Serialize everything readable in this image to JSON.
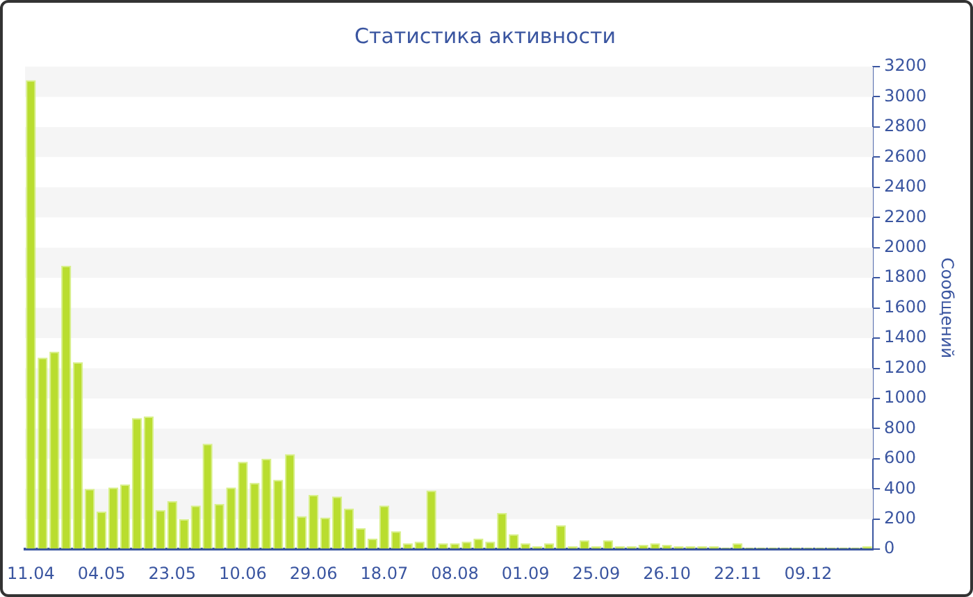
{
  "chart_data": {
    "type": "bar",
    "title": "Статистика активности",
    "ylabel": "Сообщений",
    "categories": [
      "11.04",
      null,
      null,
      null,
      null,
      null,
      "04.05",
      null,
      null,
      null,
      null,
      null,
      "23.05",
      null,
      null,
      null,
      null,
      null,
      "10.06",
      null,
      null,
      null,
      null,
      null,
      "29.06",
      null,
      null,
      null,
      null,
      null,
      "18.07",
      null,
      null,
      null,
      null,
      null,
      "08.08",
      null,
      null,
      null,
      null,
      null,
      "01.09",
      null,
      null,
      null,
      null,
      null,
      "25.09",
      null,
      null,
      null,
      null,
      null,
      "26.10",
      null,
      null,
      null,
      null,
      null,
      "22.11",
      null,
      null,
      null,
      null,
      null,
      "09.12",
      null,
      null,
      null,
      null,
      null
    ],
    "values": [
      3110,
      1270,
      1310,
      1880,
      1240,
      400,
      250,
      410,
      430,
      870,
      880,
      260,
      320,
      200,
      290,
      700,
      300,
      410,
      580,
      440,
      600,
      460,
      630,
      220,
      360,
      210,
      350,
      270,
      140,
      70,
      290,
      120,
      40,
      50,
      390,
      40,
      40,
      50,
      70,
      50,
      240,
      100,
      40,
      20,
      40,
      160,
      20,
      60,
      20,
      60,
      20,
      20,
      30,
      40,
      30,
      20,
      20,
      20,
      20,
      10,
      40,
      10,
      10,
      10,
      10,
      10,
      10,
      10,
      10,
      10,
      10,
      20
    ],
    "color": "#b9dd2f",
    "ylim": [
      0,
      3200
    ],
    "yticks": [
      0,
      200,
      400,
      600,
      800,
      1000,
      1200,
      1400,
      1600,
      1800,
      2000,
      2200,
      2400,
      2600,
      2800,
      3000,
      3200
    ]
  }
}
